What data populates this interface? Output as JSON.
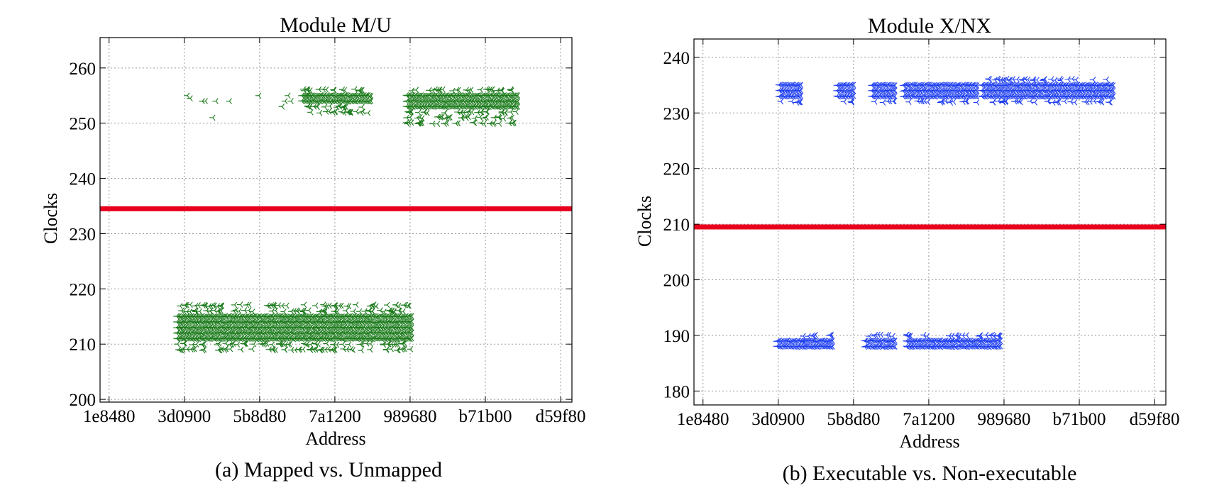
{
  "chart_data": [
    {
      "type": "scatter",
      "id": "a",
      "title": "Module M/U",
      "caption": "(a) Mapped vs. Unmapped",
      "xlabel": "Address",
      "ylabel": "Clocks",
      "xticks": [
        "1e8480",
        "3d0900",
        "5b8d80",
        "7a1200",
        "989680",
        "b71b00",
        "d59f80"
      ],
      "yticks": [
        200,
        210,
        220,
        230,
        240,
        250,
        260
      ],
      "xlim": [
        0.88,
        7.15
      ],
      "ylim": [
        199.5,
        265.5
      ],
      "marker_color": "#1a7a1a",
      "threshold": {
        "y": 234.5,
        "color": "#e8001c"
      },
      "series": [
        {
          "name": "mapped",
          "x_range": [
            1.9,
            5.02
          ],
          "y_values": [
            211,
            212,
            213,
            214,
            215
          ],
          "scatter_y": [
            209,
            210,
            216,
            217
          ]
        },
        {
          "name": "unmapped",
          "clusters": [
            {
              "x_range": [
                4.95,
                6.43
              ],
              "y_values": [
                253,
                254,
                255
              ],
              "scatter_y": [
                250,
                251,
                252,
                256
              ]
            },
            {
              "x_range": [
                3.56,
                4.48
              ],
              "y_values": [
                254,
                255
              ],
              "scatter_y": [
                252,
                253,
                256
              ]
            }
          ],
          "points": [
            [
              2.04,
              255
            ],
            [
              2.08,
              254.5
            ],
            [
              2.24,
              254
            ],
            [
              2.28,
              254
            ],
            [
              2.42,
              254
            ],
            [
              2.6,
              254
            ],
            [
              2.38,
              251
            ],
            [
              3.62,
              255
            ],
            [
              2.99,
              255
            ],
            [
              3.34,
              254
            ],
            [
              3.38,
              255
            ],
            [
              3.42,
              254
            ],
            [
              3.3,
              253
            ]
          ]
        }
      ]
    },
    {
      "type": "scatter",
      "id": "b",
      "title": "Module X/NX",
      "caption": "(b) Executable vs. Non-executable",
      "xlabel": "Address",
      "ylabel": "Clocks",
      "xticks": [
        "1e8480",
        "3d0900",
        "5b8d80",
        "7a1200",
        "989680",
        "b71b00",
        "d59f80"
      ],
      "yticks": [
        180,
        190,
        200,
        210,
        220,
        230,
        240
      ],
      "xlim": [
        0.88,
        7.15
      ],
      "ylim": [
        177.5,
        243.3
      ],
      "marker_color": "#1f3ff0",
      "threshold": {
        "y": 209.5,
        "color": "#e8001c"
      },
      "series": [
        {
          "name": "executable",
          "clusters": [
            {
              "x_range": [
                1.98,
                2.33
              ],
              "y_values": [
                188,
                189
              ],
              "scatter_y": []
            },
            {
              "x_range": [
                2.33,
                2.72
              ],
              "y_values": [
                188,
                189
              ],
              "scatter_y": [
                190
              ]
            },
            {
              "x_range": [
                3.15,
                3.55
              ],
              "y_values": [
                188,
                189
              ],
              "scatter_y": [
                190
              ]
            },
            {
              "x_range": [
                3.7,
                4.05
              ],
              "y_values": [
                188,
                189
              ],
              "scatter_y": [
                190
              ]
            },
            {
              "x_range": [
                4.05,
                4.95
              ],
              "y_values": [
                188,
                189
              ],
              "scatter_y": [
                190
              ]
            }
          ]
        },
        {
          "name": "non-executable",
          "clusters": [
            {
              "x_range": [
                2.01,
                2.3
              ],
              "y_values": [
                233,
                234,
                235
              ],
              "scatter_y": [
                232
              ]
            },
            {
              "x_range": [
                2.78,
                3.0
              ],
              "y_values": [
                233,
                234,
                235
              ],
              "scatter_y": [
                232
              ]
            },
            {
              "x_range": [
                3.24,
                3.55
              ],
              "y_values": [
                233,
                234,
                235
              ],
              "scatter_y": [
                232
              ]
            },
            {
              "x_range": [
                3.66,
                4.64
              ],
              "y_values": [
                233,
                234,
                235
              ],
              "scatter_y": [
                232
              ]
            },
            {
              "x_range": [
                4.7,
                6.45
              ],
              "y_values": [
                233,
                234,
                235
              ],
              "scatter_y": [
                232,
                236
              ]
            }
          ]
        }
      ]
    }
  ]
}
